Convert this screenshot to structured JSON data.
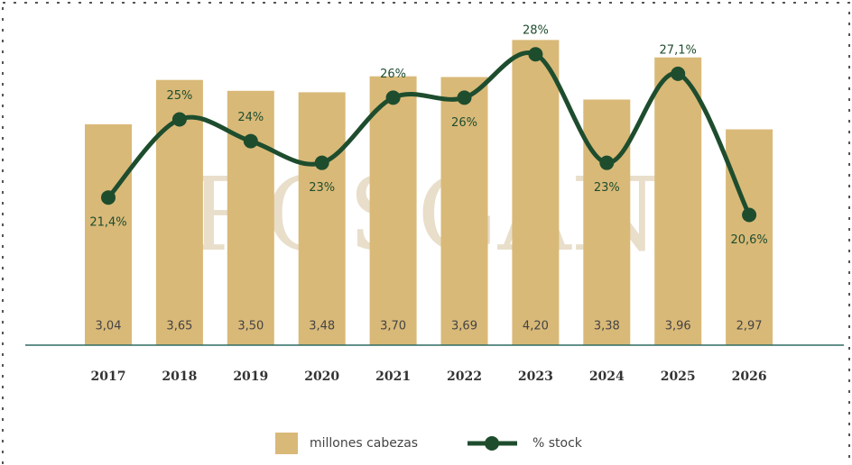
{
  "chart_data": {
    "type": "bar",
    "watermark": "ROSGAN",
    "categories": [
      "2017",
      "2018",
      "2019",
      "2020",
      "2021",
      "2022",
      "2023",
      "2024",
      "2025",
      "2026"
    ],
    "series": [
      {
        "name": "millones cabezas",
        "type": "bar",
        "color": "#d9b978",
        "values": [
          3.04,
          3.65,
          3.5,
          3.48,
          3.7,
          3.69,
          4.2,
          3.38,
          3.96,
          2.97
        ],
        "value_labels": [
          "3,04",
          "3,65",
          "3,50",
          "3,48",
          "3,70",
          "3,69",
          "4,20",
          "3,38",
          "3,96",
          "2,97"
        ]
      },
      {
        "name": "% stock",
        "type": "line",
        "axis": "y2",
        "color": "#1e4d2e",
        "values": [
          21.4,
          25,
          24,
          23,
          26,
          26,
          28,
          23,
          27.1,
          20.6
        ],
        "value_labels": [
          "21,4%",
          "25%",
          "24%",
          "23%",
          "26%",
          "26%",
          "28%",
          "23%",
          "27,1%",
          "20,6%"
        ]
      }
    ],
    "ylim": [
      0,
      4.75
    ],
    "y2lim": [
      14.6,
      30.5
    ],
    "grid": false
  }
}
